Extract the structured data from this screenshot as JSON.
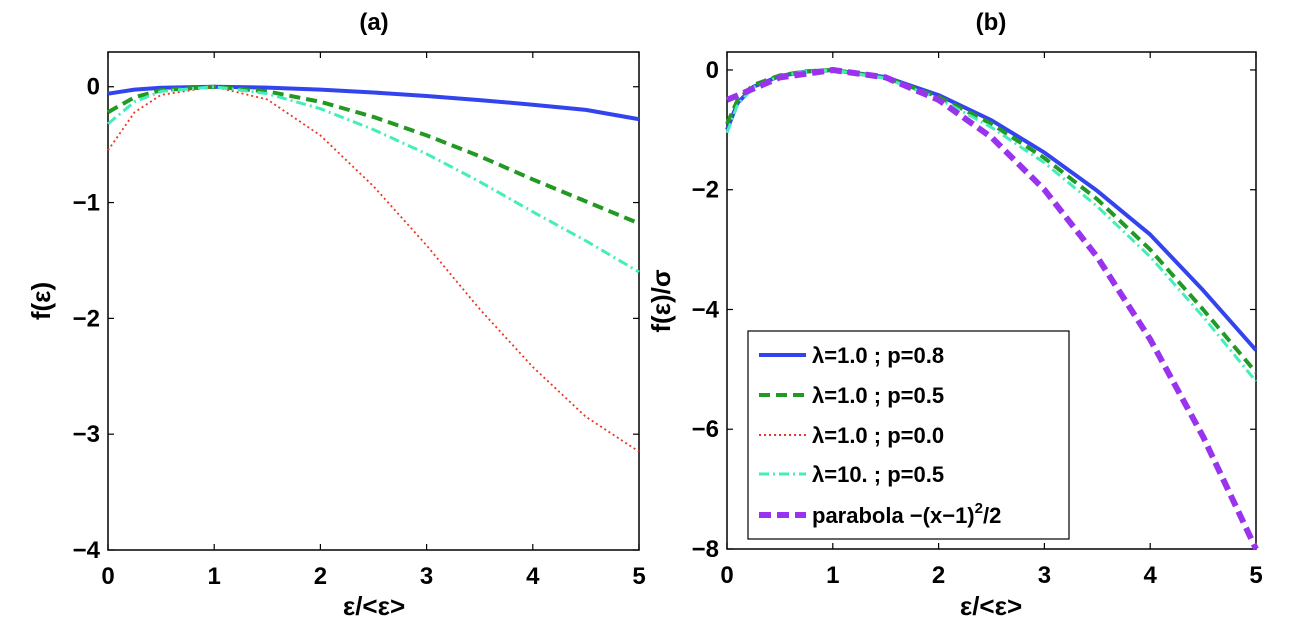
{
  "chart_data": [
    {
      "type": "line",
      "title": "(a)",
      "xlabel": "ε/<ε>",
      "ylabel": "f(ε)",
      "xlim": [
        0,
        5
      ],
      "ylim": [
        -4,
        0.3
      ],
      "xticks": [
        0,
        1,
        2,
        3,
        4,
        5
      ],
      "yticks": [
        0,
        -1,
        -2,
        -3,
        -4
      ],
      "series": [
        {
          "name": "λ=1.0 ; p=0.8",
          "style": "solid",
          "color": "#3344ee",
          "x": [
            0,
            0.25,
            0.5,
            1,
            1.5,
            2,
            2.5,
            3,
            3.5,
            4,
            4.5,
            5
          ],
          "y": [
            -0.06,
            -0.025,
            -0.008,
            0,
            -0.007,
            -0.025,
            -0.05,
            -0.08,
            -0.115,
            -0.155,
            -0.2,
            -0.28
          ]
        },
        {
          "name": "λ=1.0 ; p=0.5",
          "style": "dashed",
          "color": "#229922",
          "x": [
            0,
            0.25,
            0.5,
            1,
            1.5,
            2,
            2.5,
            3,
            3.5,
            4,
            4.5,
            5
          ],
          "y": [
            -0.22,
            -0.09,
            -0.03,
            0,
            -0.04,
            -0.13,
            -0.26,
            -0.42,
            -0.6,
            -0.8,
            -0.99,
            -1.18
          ]
        },
        {
          "name": "λ=1.0 ; p=0.0",
          "style": "dotted",
          "color": "#ee3322",
          "x": [
            0,
            0.25,
            0.5,
            1,
            1.5,
            2,
            2.5,
            3,
            3.5,
            4,
            4.5,
            5
          ],
          "y": [
            -0.55,
            -0.22,
            -0.07,
            0,
            -0.11,
            -0.42,
            -0.86,
            -1.37,
            -1.92,
            -2.42,
            -2.85,
            -3.15
          ]
        },
        {
          "name": "λ=10. ; p=0.5",
          "style": "dashdot",
          "color": "#44eebb",
          "x": [
            0,
            0.25,
            0.5,
            1,
            1.5,
            2,
            2.5,
            3,
            3.5,
            4,
            4.5,
            5
          ],
          "y": [
            -0.32,
            -0.13,
            -0.04,
            0,
            -0.06,
            -0.19,
            -0.37,
            -0.58,
            -0.82,
            -1.08,
            -1.33,
            -1.6
          ]
        }
      ]
    },
    {
      "type": "line",
      "title": "(b)",
      "xlabel": "ε/<ε>",
      "ylabel": "f(ε)/σ",
      "xlim": [
        0,
        5
      ],
      "ylim": [
        -8,
        0.3
      ],
      "xticks": [
        0,
        1,
        2,
        3,
        4,
        5
      ],
      "yticks": [
        0,
        -2,
        -4,
        -6,
        -8
      ],
      "legend_location": "bottom-right",
      "series": [
        {
          "name": "λ=1.0 ; p=0.8",
          "style": "solid",
          "color": "#3344ee",
          "x": [
            0,
            0.1,
            0.25,
            0.5,
            0.75,
            1,
            1.5,
            2,
            2.5,
            3,
            3.5,
            4,
            4.5,
            5
          ],
          "y": [
            -1.0,
            -0.55,
            -0.28,
            -0.1,
            -0.025,
            0,
            -0.12,
            -0.42,
            -0.84,
            -1.38,
            -2.02,
            -2.75,
            -3.68,
            -4.68
          ]
        },
        {
          "name": "λ=1.0 ; p=0.5",
          "style": "dashed",
          "color": "#229922",
          "x": [
            0,
            0.1,
            0.25,
            0.5,
            0.75,
            1,
            1.5,
            2,
            2.5,
            3,
            3.5,
            4,
            4.5,
            5
          ],
          "y": [
            -0.9,
            -0.5,
            -0.25,
            -0.09,
            -0.02,
            0,
            -0.13,
            -0.45,
            -0.9,
            -1.47,
            -2.16,
            -3.0,
            -4.0,
            -5.05
          ]
        },
        {
          "name": "λ=1.0 ; p=0.0",
          "style": "dotted",
          "color": "#ee3322",
          "x": [],
          "y": []
        },
        {
          "name": "λ=10. ; p=0.5",
          "style": "dashdot",
          "color": "#44eebb",
          "x": [
            0,
            0.1,
            0.25,
            0.5,
            0.75,
            1,
            1.5,
            2,
            2.5,
            3,
            3.5,
            4,
            4.5,
            5
          ],
          "y": [
            -1.05,
            -0.58,
            -0.29,
            -0.1,
            -0.025,
            0,
            -0.14,
            -0.48,
            -0.96,
            -1.55,
            -2.28,
            -3.12,
            -4.12,
            -5.2
          ]
        },
        {
          "name": "parabola −(x−1)",
          "name_sup": "2",
          "name_tail": "/2",
          "style": "bigdashed",
          "color": "#9933ee",
          "x": [
            0,
            0.5,
            1,
            1.5,
            2,
            2.5,
            3,
            3.5,
            4,
            4.5,
            5
          ],
          "y": [
            -0.5,
            -0.125,
            0,
            -0.125,
            -0.5,
            -1.125,
            -2.0,
            -3.125,
            -4.5,
            -6.125,
            -8.0
          ]
        }
      ]
    }
  ]
}
